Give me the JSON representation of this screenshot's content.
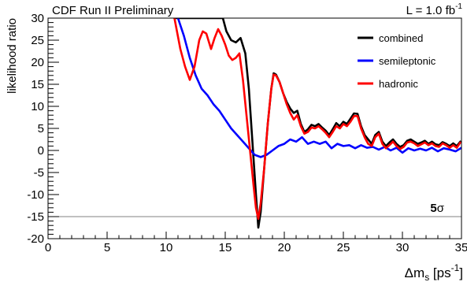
{
  "chart_data": {
    "type": "line",
    "title": "CDF Run II Preliminary",
    "luminosity": {
      "text": "L = 1.0 fb",
      "superscript": "-1"
    },
    "ylabel": "likelihood ratio",
    "xlabel": {
      "main": "Δm",
      "sub": "s",
      "unit": " [ps",
      "unit_sup": "-1",
      "close": "]"
    },
    "xlim": [
      0,
      35
    ],
    "ylim": [
      -20,
      30
    ],
    "x_ticks": [
      0,
      5,
      10,
      15,
      20,
      25,
      30,
      35
    ],
    "y_ticks": [
      -20,
      -15,
      -10,
      -5,
      0,
      5,
      10,
      15,
      20,
      25,
      30
    ],
    "grid": false,
    "legend_position": "top-right",
    "reference_line": {
      "y": -15,
      "label_num": "5",
      "label_sym": "σ",
      "color": "#808080"
    },
    "series": [
      {
        "name": "combined",
        "color": "#000000",
        "x": [
          10.7,
          14.8,
          15.1,
          15.5,
          15.9,
          16.3,
          16.7,
          17.0,
          17.3,
          17.6,
          17.8,
          18.0,
          18.3,
          18.6,
          18.9,
          19.1,
          19.3,
          19.6,
          19.9,
          20.2,
          20.5,
          20.8,
          21.1,
          21.4,
          21.7,
          22.0,
          22.3,
          22.6,
          22.9,
          23.2,
          23.5,
          23.8,
          24.1,
          24.4,
          24.7,
          25.0,
          25.3,
          25.6,
          25.9,
          26.2,
          26.5,
          26.8,
          27.1,
          27.4,
          27.7,
          28.0,
          28.3,
          28.6,
          28.9,
          29.2,
          29.5,
          29.8,
          30.1,
          30.4,
          30.7,
          31.0,
          31.3,
          31.6,
          31.9,
          32.2,
          32.5,
          32.8,
          33.1,
          33.4,
          33.7,
          34.0,
          34.3,
          34.6,
          34.9
        ],
        "y": [
          30,
          30,
          27,
          25,
          24.5,
          25.5,
          22,
          14,
          2,
          -10,
          -17.5,
          -14,
          -4,
          6,
          14,
          17.5,
          17.2,
          15.5,
          13,
          11,
          9.5,
          8.5,
          9,
          6,
          4.2,
          4.8,
          5.8,
          5.5,
          6,
          5.2,
          4.5,
          3.5,
          4.8,
          6.2,
          5.5,
          6.5,
          6.0,
          7.2,
          8.4,
          8.3,
          5.5,
          3.5,
          2.5,
          1.5,
          3.5,
          4.2,
          2.0,
          1.0,
          1.8,
          2.5,
          1.5,
          0.8,
          1.2,
          2.2,
          2.5,
          2.0,
          1.5,
          1.8,
          2.2,
          1.5,
          2.0,
          1.4,
          1.2,
          1.9,
          1.5,
          1.0,
          1.6,
          1.0,
          2.0
        ]
      },
      {
        "name": "semileptonic",
        "color": "#0000ff",
        "x": [
          11.0,
          11.5,
          12.0,
          12.5,
          13.0,
          13.5,
          14.0,
          14.5,
          15.0,
          15.5,
          16.0,
          16.5,
          17.0,
          17.5,
          18.0,
          18.5,
          19.0,
          19.5,
          20.0,
          20.5,
          21.0,
          21.5,
          22.0,
          22.5,
          23.0,
          23.5,
          24.0,
          24.5,
          25.0,
          25.5,
          26.0,
          26.5,
          27.0,
          27.5,
          28.0,
          28.5,
          29.0,
          29.5,
          30.0,
          30.5,
          31.0,
          31.5,
          32.0,
          32.5,
          33.0,
          33.5,
          34.0,
          34.5,
          35.0
        ],
        "y": [
          30,
          26,
          21,
          17,
          14,
          12.5,
          10.5,
          9,
          7,
          5,
          3.5,
          2,
          0.5,
          -1,
          -1.5,
          -1,
          0,
          1,
          1.5,
          2.5,
          2.0,
          3.0,
          1.5,
          2.0,
          1.5,
          2.0,
          0.5,
          1.5,
          1.0,
          1.2,
          0.5,
          1.2,
          0.6,
          0.8,
          0.2,
          0.8,
          0.0,
          0.6,
          -0.5,
          0.5,
          0.0,
          0.4,
          0.0,
          0.6,
          -0.2,
          0.5,
          0.2,
          -0.2,
          0.6
        ]
      },
      {
        "name": "hadronic",
        "color": "#ff0000",
        "x": [
          10.7,
          11.2,
          11.6,
          12.0,
          12.4,
          12.8,
          13.1,
          13.4,
          13.8,
          14.1,
          14.4,
          14.7,
          15.0,
          15.3,
          15.6,
          15.9,
          16.2,
          16.5,
          16.8,
          17.1,
          17.4,
          17.6,
          17.8,
          18.0,
          18.3,
          18.6,
          18.9,
          19.1,
          19.3,
          19.6,
          19.9,
          20.2,
          20.5,
          20.8,
          21.1,
          21.4,
          21.7,
          22.0,
          22.3,
          22.6,
          22.9,
          23.2,
          23.5,
          23.8,
          24.1,
          24.4,
          24.7,
          25.0,
          25.3,
          25.6,
          25.9,
          26.2,
          26.5,
          26.8,
          27.1,
          27.4,
          27.7,
          28.0,
          28.3,
          28.6,
          28.9,
          29.2,
          29.5,
          29.8,
          30.1,
          30.4,
          30.7,
          31.0,
          31.3,
          31.6,
          31.9,
          32.2,
          32.5,
          32.8,
          33.1,
          33.4,
          33.7,
          34.0,
          34.3,
          34.6,
          34.9
        ],
        "y": [
          30,
          23,
          19,
          16,
          19,
          25,
          27,
          26.5,
          23,
          25.5,
          27.5,
          26,
          24,
          21.5,
          20.5,
          21,
          22,
          16,
          8,
          0,
          -8,
          -13,
          -15.5,
          -12,
          -4,
          6,
          14,
          17.2,
          17.0,
          15.5,
          13,
          10.5,
          8.5,
          7.0,
          8.0,
          5.5,
          3.8,
          4.2,
          5.2,
          5.0,
          5.5,
          4.8,
          4.0,
          3.0,
          4.2,
          5.5,
          5.0,
          6.0,
          5.5,
          6.5,
          7.8,
          7.8,
          5.0,
          3.0,
          1.5,
          1.0,
          3.0,
          3.8,
          1.5,
          0.5,
          1.2,
          2.0,
          1.0,
          0.3,
          0.8,
          1.8,
          2.0,
          1.6,
          1.0,
          1.4,
          1.8,
          1.2,
          1.6,
          1.0,
          0.8,
          1.6,
          1.2,
          0.6,
          1.2,
          0.6,
          1.8
        ]
      }
    ]
  }
}
